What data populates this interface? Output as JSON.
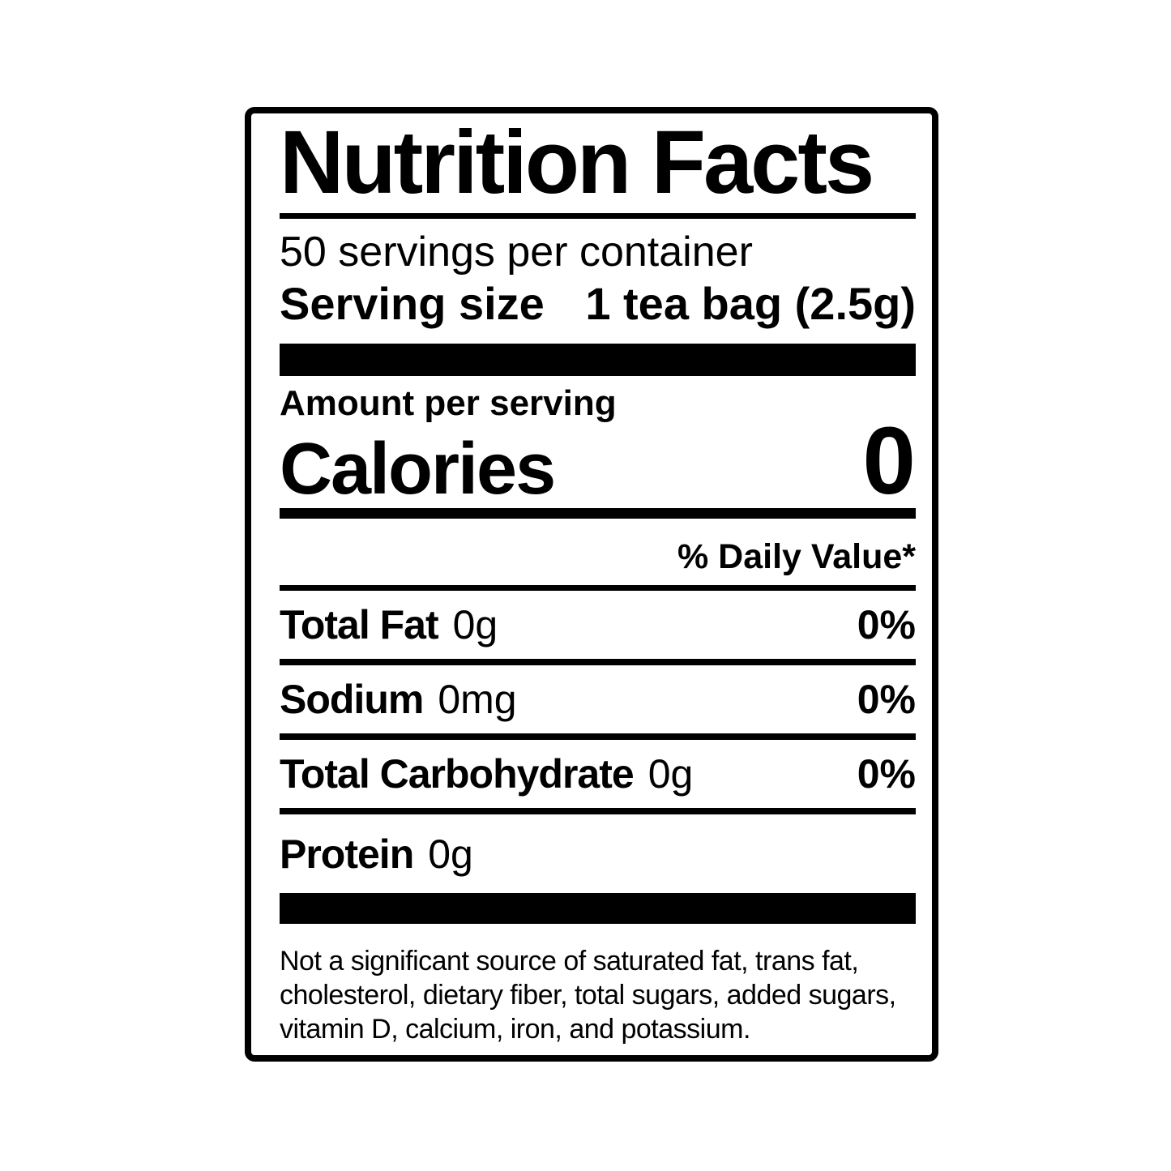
{
  "label": {
    "title": "Nutrition Facts",
    "servings_per_container": "50 servings per container",
    "serving_size": {
      "label": "Serving size",
      "value": "1 tea bag (2.5g)"
    },
    "amount_per_serving": "Amount per serving",
    "calories": {
      "label": "Calories",
      "value": "0"
    },
    "daily_value_header": "% Daily Value*",
    "nutrients": [
      {
        "name": "Total Fat",
        "amount": "0g",
        "daily_value": "0%"
      },
      {
        "name": "Sodium",
        "amount": "0mg",
        "daily_value": "0%"
      },
      {
        "name": "Total Carbohydrate",
        "amount": "0g",
        "daily_value": "0%"
      },
      {
        "name": "Protein",
        "amount": "0g",
        "daily_value": ""
      }
    ],
    "footnote": "Not a significant source of saturated fat, trans fat, cholesterol, dietary fiber, total sugars, added sugars, vitamin D, calcium, iron, and potassium.",
    "colors": {
      "ink": "#000000",
      "background": "#ffffff"
    }
  }
}
